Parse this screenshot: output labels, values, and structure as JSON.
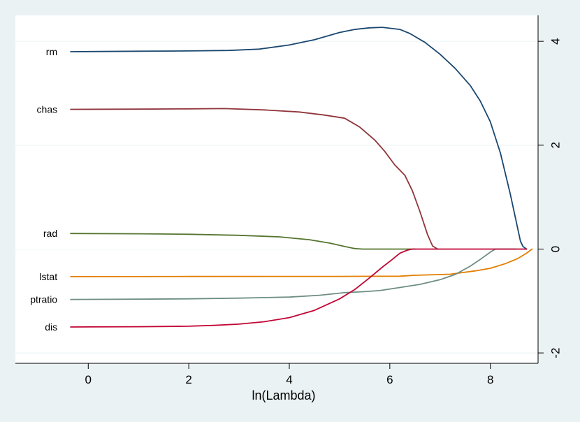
{
  "chart_data": {
    "type": "line",
    "xlabel": "ln(Lambda)",
    "ylabel": "",
    "xlim": [
      -1.45,
      8.95
    ],
    "ylim": [
      -2.2,
      4.5
    ],
    "grid": true,
    "xticks": [
      0,
      2,
      4,
      6,
      8
    ],
    "yticks": [
      -2,
      0,
      2,
      4
    ],
    "xtick_labels": [
      "0",
      "2",
      "4",
      "6",
      "8"
    ],
    "ytick_labels": [
      "-2",
      "0",
      "2",
      "4"
    ],
    "colors": {
      "background": "#eaf2f3",
      "plot_background": "#ffffff",
      "grid": "#eaf2f3"
    },
    "series": [
      {
        "name": "rm",
        "color": "#1a476f",
        "x": [
          -0.35,
          1,
          2,
          2.8,
          3.4,
          4,
          4.5,
          5,
          5.3,
          5.6,
          5.85,
          6.2,
          6.4,
          6.7,
          7,
          7.3,
          7.6,
          7.8,
          8,
          8.2,
          8.4,
          8.6,
          8.65,
          8.72
        ],
        "y": [
          3.8,
          3.81,
          3.815,
          3.825,
          3.85,
          3.93,
          4.03,
          4.17,
          4.23,
          4.26,
          4.27,
          4.23,
          4.15,
          3.98,
          3.75,
          3.48,
          3.15,
          2.85,
          2.45,
          1.85,
          1.05,
          0.15,
          0.05,
          0
        ]
      },
      {
        "name": "chas",
        "color": "#90353b",
        "x": [
          -0.35,
          1,
          2,
          2.7,
          3.5,
          4.2,
          4.7,
          5.1,
          5.4,
          5.7,
          5.9,
          6.1,
          6.3,
          6.45,
          6.6,
          6.75,
          6.85,
          6.95
        ],
        "y": [
          2.69,
          2.695,
          2.7,
          2.705,
          2.68,
          2.64,
          2.58,
          2.52,
          2.35,
          2.1,
          1.88,
          1.62,
          1.42,
          1.12,
          0.72,
          0.28,
          0.06,
          0
        ]
      },
      {
        "name": "rad",
        "color": "#55752f",
        "x": [
          -0.35,
          1,
          2,
          3,
          3.8,
          4.4,
          4.8,
          5.1,
          5.3,
          5.45,
          6,
          6.5
        ],
        "y": [
          0.3,
          0.295,
          0.285,
          0.265,
          0.235,
          0.18,
          0.115,
          0.05,
          0.01,
          0,
          0,
          0
        ]
      },
      {
        "name": "lstat",
        "color": "#e37e00",
        "x": [
          -0.35,
          2,
          4,
          5,
          6.2,
          6.5,
          7.2,
          7.7,
          8,
          8.3,
          8.55,
          8.72,
          8.83
        ],
        "y": [
          -0.53,
          -0.528,
          -0.527,
          -0.526,
          -0.522,
          -0.505,
          -0.485,
          -0.42,
          -0.37,
          -0.28,
          -0.18,
          -0.08,
          0
        ]
      },
      {
        "name": "ptratio",
        "color": "#6e8e84",
        "x": [
          -0.35,
          1,
          2,
          3,
          4,
          4.6,
          5.1,
          5.5,
          5.8,
          6.2,
          6.6,
          7,
          7.3,
          7.6,
          7.8,
          8,
          8.1,
          8.5
        ],
        "y": [
          -0.97,
          -0.965,
          -0.958,
          -0.945,
          -0.925,
          -0.89,
          -0.84,
          -0.82,
          -0.8,
          -0.74,
          -0.68,
          -0.59,
          -0.49,
          -0.33,
          -0.2,
          -0.06,
          0,
          0
        ]
      },
      {
        "name": "dis",
        "color": "#c10534",
        "x": [
          -0.35,
          1,
          2,
          2.5,
          3,
          3.5,
          4,
          4.5,
          5,
          5.3,
          5.6,
          5.85,
          6.05,
          6.2,
          6.35,
          6.45,
          6.6,
          7,
          8,
          8.72
        ],
        "y": [
          -1.5,
          -1.495,
          -1.485,
          -1.47,
          -1.445,
          -1.4,
          -1.32,
          -1.18,
          -0.96,
          -0.78,
          -0.55,
          -0.35,
          -0.2,
          -0.08,
          -0.02,
          0,
          0,
          0,
          0,
          0
        ]
      }
    ]
  }
}
